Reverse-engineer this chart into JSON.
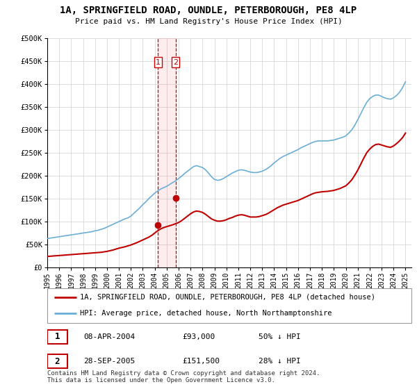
{
  "title": "1A, SPRINGFIELD ROAD, OUNDLE, PETERBOROUGH, PE8 4LP",
  "subtitle": "Price paid vs. HM Land Registry's House Price Index (HPI)",
  "ylim": [
    0,
    500000
  ],
  "yticks": [
    0,
    50000,
    100000,
    150000,
    200000,
    250000,
    300000,
    350000,
    400000,
    450000,
    500000
  ],
  "ytick_labels": [
    "£0",
    "£50K",
    "£100K",
    "£150K",
    "£200K",
    "£250K",
    "£300K",
    "£350K",
    "£400K",
    "£450K",
    "£500K"
  ],
  "line_color_hpi": "#6aaed6",
  "line_color_price": "#c00000",
  "marker_color": "#c00000",
  "vline_color": "#cc0000",
  "transaction1_date": 2004.27,
  "transaction1_price": 93000,
  "transaction2_date": 2005.74,
  "transaction2_price": 151500,
  "legend_entry1": "1A, SPRINGFIELD ROAD, OUNDLE, PETERBOROUGH, PE8 4LP (detached house)",
  "legend_entry2": "HPI: Average price, detached house, North Northamptonshire",
  "table_row1": [
    "1",
    "08-APR-2004",
    "£93,000",
    "50% ↓ HPI"
  ],
  "table_row2": [
    "2",
    "28-SEP-2005",
    "£151,500",
    "28% ↓ HPI"
  ],
  "footnote": "Contains HM Land Registry data © Crown copyright and database right 2024.\nThis data is licensed under the Open Government Licence v3.0.",
  "background_color": "#ffffff",
  "hpi_years": [
    1995.0,
    1995.25,
    1995.5,
    1995.75,
    1996.0,
    1996.25,
    1996.5,
    1996.75,
    1997.0,
    1997.25,
    1997.5,
    1997.75,
    1998.0,
    1998.25,
    1998.5,
    1998.75,
    1999.0,
    1999.25,
    1999.5,
    1999.75,
    2000.0,
    2000.25,
    2000.5,
    2000.75,
    2001.0,
    2001.25,
    2001.5,
    2001.75,
    2002.0,
    2002.25,
    2002.5,
    2002.75,
    2003.0,
    2003.25,
    2003.5,
    2003.75,
    2004.0,
    2004.25,
    2004.5,
    2004.75,
    2005.0,
    2005.25,
    2005.5,
    2005.75,
    2006.0,
    2006.25,
    2006.5,
    2006.75,
    2007.0,
    2007.25,
    2007.5,
    2007.75,
    2008.0,
    2008.25,
    2008.5,
    2008.75,
    2009.0,
    2009.25,
    2009.5,
    2009.75,
    2010.0,
    2010.25,
    2010.5,
    2010.75,
    2011.0,
    2011.25,
    2011.5,
    2011.75,
    2012.0,
    2012.25,
    2012.5,
    2012.75,
    2013.0,
    2013.25,
    2013.5,
    2013.75,
    2014.0,
    2014.25,
    2014.5,
    2014.75,
    2015.0,
    2015.25,
    2015.5,
    2015.75,
    2016.0,
    2016.25,
    2016.5,
    2016.75,
    2017.0,
    2017.25,
    2017.5,
    2017.75,
    2018.0,
    2018.25,
    2018.5,
    2018.75,
    2019.0,
    2019.25,
    2019.5,
    2019.75,
    2020.0,
    2020.25,
    2020.5,
    2020.75,
    2021.0,
    2021.25,
    2021.5,
    2021.75,
    2022.0,
    2022.25,
    2022.5,
    2022.75,
    2023.0,
    2023.25,
    2023.5,
    2023.75,
    2024.0,
    2024.25,
    2024.5,
    2024.75,
    2025.0
  ],
  "hpi_values": [
    63000,
    64000,
    65000,
    66000,
    67000,
    68000,
    69000,
    70000,
    71000,
    72000,
    73000,
    74000,
    75000,
    76000,
    77000,
    78000,
    80000,
    81000,
    83000,
    85000,
    88000,
    91000,
    94000,
    97000,
    100000,
    103000,
    106000,
    108000,
    112000,
    118000,
    124000,
    130000,
    137000,
    143000,
    150000,
    156000,
    162000,
    167000,
    171000,
    174000,
    177000,
    181000,
    185000,
    189000,
    194000,
    199000,
    205000,
    210000,
    215000,
    220000,
    222000,
    220000,
    218000,
    213000,
    206000,
    198000,
    192000,
    190000,
    191000,
    194000,
    198000,
    202000,
    206000,
    209000,
    212000,
    213000,
    212000,
    210000,
    208000,
    207000,
    207000,
    208000,
    210000,
    213000,
    217000,
    222000,
    228000,
    233000,
    238000,
    242000,
    245000,
    248000,
    251000,
    254000,
    257000,
    261000,
    264000,
    267000,
    270000,
    273000,
    275000,
    276000,
    276000,
    276000,
    276000,
    277000,
    278000,
    280000,
    282000,
    284000,
    287000,
    293000,
    300000,
    310000,
    322000,
    335000,
    348000,
    360000,
    368000,
    373000,
    376000,
    376000,
    373000,
    370000,
    368000,
    367000,
    370000,
    375000,
    382000,
    392000,
    405000
  ],
  "price_years": [
    1995.0,
    1995.25,
    1995.5,
    1995.75,
    1996.0,
    1996.25,
    1996.5,
    1996.75,
    1997.0,
    1997.25,
    1997.5,
    1997.75,
    1998.0,
    1998.25,
    1998.5,
    1998.75,
    1999.0,
    1999.25,
    1999.5,
    1999.75,
    2000.0,
    2000.25,
    2000.5,
    2000.75,
    2001.0,
    2001.25,
    2001.5,
    2001.75,
    2002.0,
    2002.25,
    2002.5,
    2002.75,
    2003.0,
    2003.25,
    2003.5,
    2003.75,
    2004.0,
    2004.25,
    2004.5,
    2004.75,
    2005.0,
    2005.25,
    2005.5,
    2005.75,
    2006.0,
    2006.25,
    2006.5,
    2006.75,
    2007.0,
    2007.25,
    2007.5,
    2007.75,
    2008.0,
    2008.25,
    2008.5,
    2008.75,
    2009.0,
    2009.25,
    2009.5,
    2009.75,
    2010.0,
    2010.25,
    2010.5,
    2010.75,
    2011.0,
    2011.25,
    2011.5,
    2011.75,
    2012.0,
    2012.25,
    2012.5,
    2012.75,
    2013.0,
    2013.25,
    2013.5,
    2013.75,
    2014.0,
    2014.25,
    2014.5,
    2014.75,
    2015.0,
    2015.25,
    2015.5,
    2015.75,
    2016.0,
    2016.25,
    2016.5,
    2016.75,
    2017.0,
    2017.25,
    2017.5,
    2017.75,
    2018.0,
    2018.25,
    2018.5,
    2018.75,
    2019.0,
    2019.25,
    2019.5,
    2019.75,
    2020.0,
    2020.25,
    2020.5,
    2020.75,
    2021.0,
    2021.25,
    2021.5,
    2021.75,
    2022.0,
    2022.25,
    2022.5,
    2022.75,
    2023.0,
    2023.25,
    2023.5,
    2023.75,
    2024.0,
    2024.25,
    2024.5,
    2024.75,
    2025.0
  ],
  "price_values": [
    24000,
    24500,
    25000,
    25500,
    26000,
    26500,
    27000,
    27500,
    28000,
    28500,
    29000,
    29500,
    30000,
    30500,
    31000,
    31500,
    32000,
    32500,
    33000,
    34000,
    35000,
    36500,
    38000,
    40000,
    42000,
    43500,
    45000,
    47000,
    49000,
    51500,
    54000,
    57000,
    60000,
    63000,
    66000,
    70000,
    75000,
    80000,
    84000,
    87000,
    89000,
    91000,
    93000,
    95500,
    98000,
    102000,
    107000,
    112000,
    117000,
    121000,
    123000,
    122000,
    120000,
    116000,
    111000,
    106000,
    103000,
    101000,
    101000,
    102000,
    104000,
    107000,
    109000,
    112000,
    114000,
    115000,
    114000,
    112000,
    110000,
    110000,
    110000,
    111000,
    113000,
    115000,
    118000,
    122000,
    126000,
    130000,
    133000,
    136000,
    138000,
    140000,
    142000,
    144000,
    146000,
    149000,
    152000,
    155000,
    158000,
    161000,
    163000,
    164000,
    165000,
    165500,
    166000,
    167000,
    168000,
    170000,
    172000,
    175000,
    178000,
    184000,
    191000,
    201000,
    212000,
    225000,
    238000,
    250000,
    258000,
    264000,
    268000,
    269000,
    267000,
    265000,
    263000,
    262000,
    265000,
    270000,
    276000,
    283000,
    293000
  ]
}
